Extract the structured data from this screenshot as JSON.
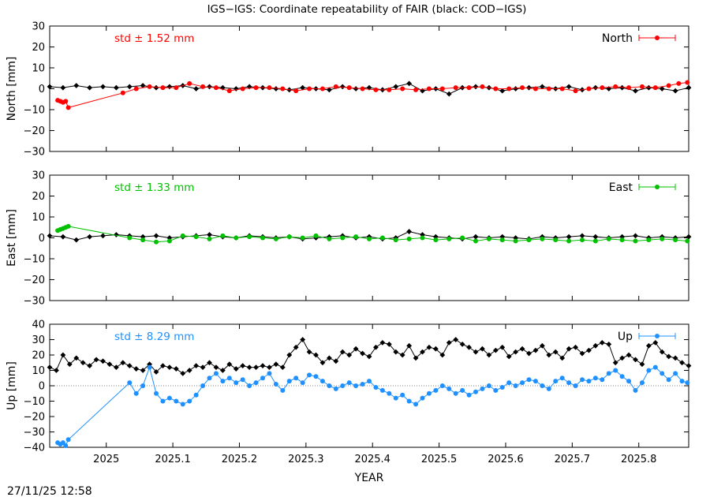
{
  "title": "IGS−IGS: Coordinate repeatability of FAIR (black: COD−IGS)",
  "timestamp": "27/11/25 12:58",
  "chart_data": [
    {
      "type": "scatter",
      "key": "north",
      "ylabel": "North [mm]",
      "ylim": [
        -30,
        30
      ],
      "yticks": [
        -30,
        -20,
        -10,
        0,
        10,
        20,
        30
      ],
      "ytick_labels": [
        "−30",
        "−20",
        "−10",
        "0",
        "10",
        "20",
        "30"
      ],
      "xlim": [
        2024.915,
        2025.875
      ],
      "std_label": "std ± 1.52 mm",
      "legend": "North",
      "color": "#ff0000",
      "zero_line": false,
      "series": [
        {
          "name": "North",
          "color": "#ff0000",
          "x": [
            2024.927,
            2024.931,
            2024.935,
            2024.939,
            2024.943,
            2025.025,
            2025.045,
            2025.065,
            2025.085,
            2025.105,
            2025.125,
            2025.145,
            2025.165,
            2025.185,
            2025.205,
            2025.225,
            2025.245,
            2025.265,
            2025.285,
            2025.305,
            2025.325,
            2025.345,
            2025.365,
            2025.385,
            2025.405,
            2025.425,
            2025.445,
            2025.465,
            2025.485,
            2025.505,
            2025.525,
            2025.545,
            2025.565,
            2025.585,
            2025.605,
            2025.625,
            2025.645,
            2025.665,
            2025.685,
            2025.705,
            2025.725,
            2025.745,
            2025.765,
            2025.785,
            2025.805,
            2025.825,
            2025.845,
            2025.86,
            2025.873
          ],
          "y": [
            -5.5,
            -6.0,
            -6.5,
            -6.0,
            -9.0,
            -2.0,
            0.0,
            1.0,
            0.5,
            0.5,
            2.5,
            1.0,
            0.5,
            -1.0,
            0.0,
            0.5,
            0.5,
            0.0,
            -1.0,
            0.0,
            0.0,
            1.0,
            0.5,
            0.0,
            -0.5,
            -0.5,
            0.0,
            -0.5,
            0.0,
            0.0,
            0.5,
            0.5,
            1.0,
            0.0,
            0.0,
            0.5,
            0.0,
            0.0,
            0.0,
            -1.0,
            0.0,
            0.5,
            1.0,
            0.5,
            1.0,
            0.5,
            1.5,
            2.5,
            3.0
          ]
        },
        {
          "name": "COD−IGS",
          "color": "#000000",
          "x": [
            2024.915,
            2024.935,
            2024.955,
            2024.975,
            2024.995,
            2025.015,
            2025.035,
            2025.055,
            2025.075,
            2025.095,
            2025.115,
            2025.135,
            2025.155,
            2025.175,
            2025.195,
            2025.215,
            2025.235,
            2025.255,
            2025.275,
            2025.295,
            2025.315,
            2025.335,
            2025.355,
            2025.375,
            2025.395,
            2025.415,
            2025.435,
            2025.455,
            2025.475,
            2025.495,
            2025.515,
            2025.535,
            2025.555,
            2025.575,
            2025.595,
            2025.615,
            2025.635,
            2025.655,
            2025.675,
            2025.695,
            2025.715,
            2025.735,
            2025.755,
            2025.775,
            2025.795,
            2025.815,
            2025.835,
            2025.855,
            2025.875
          ],
          "y": [
            1.0,
            0.5,
            1.5,
            0.5,
            1.0,
            0.5,
            1.0,
            1.5,
            0.5,
            1.0,
            1.5,
            0.0,
            1.0,
            0.5,
            0.0,
            1.0,
            0.5,
            0.0,
            -0.5,
            0.5,
            0.0,
            -0.5,
            1.0,
            0.0,
            0.5,
            -0.5,
            1.0,
            2.5,
            -1.0,
            0.0,
            -2.5,
            0.5,
            1.0,
            0.5,
            -1.0,
            0.0,
            0.5,
            1.0,
            0.0,
            1.0,
            -0.5,
            0.5,
            0.0,
            0.5,
            -1.0,
            0.5,
            0.0,
            -1.0,
            0.5
          ]
        }
      ]
    },
    {
      "type": "scatter",
      "key": "east",
      "ylabel": "East [mm]",
      "ylim": [
        -30,
        30
      ],
      "yticks": [
        -30,
        -20,
        -10,
        0,
        10,
        20,
        30
      ],
      "ytick_labels": [
        "−30",
        "−20",
        "−10",
        "0",
        "10",
        "20",
        "30"
      ],
      "xlim": [
        2024.915,
        2025.875
      ],
      "std_label": "std ± 1.33 mm",
      "legend": "East",
      "color": "#00c000",
      "zero_line": false,
      "series": [
        {
          "name": "East",
          "color": "#00c000",
          "x": [
            2024.927,
            2024.931,
            2024.935,
            2024.939,
            2024.943,
            2025.035,
            2025.055,
            2025.075,
            2025.095,
            2025.115,
            2025.135,
            2025.155,
            2025.175,
            2025.195,
            2025.215,
            2025.235,
            2025.255,
            2025.275,
            2025.295,
            2025.315,
            2025.335,
            2025.355,
            2025.375,
            2025.395,
            2025.415,
            2025.435,
            2025.455,
            2025.475,
            2025.495,
            2025.515,
            2025.535,
            2025.555,
            2025.575,
            2025.595,
            2025.615,
            2025.635,
            2025.655,
            2025.675,
            2025.695,
            2025.715,
            2025.735,
            2025.755,
            2025.775,
            2025.795,
            2025.815,
            2025.835,
            2025.855,
            2025.873
          ],
          "y": [
            3.5,
            4.0,
            4.5,
            5.0,
            5.5,
            0.0,
            -1.0,
            -2.0,
            -1.5,
            1.0,
            0.5,
            -0.5,
            1.0,
            0.0,
            0.5,
            0.0,
            -0.5,
            0.5,
            0.0,
            1.0,
            -0.5,
            0.0,
            0.5,
            -0.5,
            0.0,
            -1.0,
            -0.5,
            0.0,
            -1.0,
            -0.5,
            0.0,
            -1.5,
            -0.5,
            -1.0,
            -1.5,
            -1.0,
            -0.5,
            -1.0,
            -1.5,
            -1.0,
            -1.5,
            -0.5,
            -1.0,
            -1.5,
            -1.0,
            -0.5,
            -1.0,
            -1.5
          ]
        },
        {
          "name": "COD−IGS",
          "color": "#000000",
          "x": [
            2024.915,
            2024.935,
            2024.955,
            2024.975,
            2024.995,
            2025.015,
            2025.035,
            2025.055,
            2025.075,
            2025.095,
            2025.115,
            2025.135,
            2025.155,
            2025.175,
            2025.195,
            2025.215,
            2025.235,
            2025.255,
            2025.275,
            2025.295,
            2025.315,
            2025.335,
            2025.355,
            2025.375,
            2025.395,
            2025.415,
            2025.435,
            2025.455,
            2025.475,
            2025.495,
            2025.515,
            2025.535,
            2025.555,
            2025.575,
            2025.595,
            2025.615,
            2025.635,
            2025.655,
            2025.675,
            2025.695,
            2025.715,
            2025.735,
            2025.755,
            2025.775,
            2025.795,
            2025.815,
            2025.835,
            2025.855,
            2025.875
          ],
          "y": [
            1.0,
            0.5,
            -1.0,
            0.5,
            1.0,
            1.5,
            1.0,
            0.5,
            1.0,
            0.0,
            0.5,
            1.0,
            1.5,
            0.5,
            0.0,
            1.0,
            0.5,
            0.0,
            0.5,
            -0.5,
            0.0,
            0.5,
            1.0,
            0.0,
            0.5,
            -0.5,
            0.0,
            3.0,
            1.5,
            0.5,
            0.0,
            -0.5,
            0.5,
            0.0,
            0.5,
            0.0,
            -0.5,
            0.5,
            0.0,
            0.5,
            1.0,
            0.5,
            0.0,
            0.5,
            1.0,
            0.0,
            0.5,
            0.0,
            0.5
          ]
        }
      ]
    },
    {
      "type": "scatter",
      "key": "up",
      "ylabel": "Up [mm]",
      "xlabel": "YEAR",
      "ylim": [
        -40,
        40
      ],
      "yticks": [
        -40,
        -30,
        -20,
        -10,
        0,
        10,
        20,
        30,
        40
      ],
      "ytick_labels": [
        "−40",
        "−30",
        "−20",
        "−10",
        "0",
        "10",
        "20",
        "30",
        "40"
      ],
      "xlim": [
        2024.915,
        2025.875
      ],
      "xticks": [
        2025,
        2025.1,
        2025.2,
        2025.3,
        2025.4,
        2025.5,
        2025.6,
        2025.7,
        2025.8
      ],
      "xtick_labels": [
        "2025",
        "2025.1",
        "2025.2",
        "2025.3",
        "2025.4",
        "2025.5",
        "2025.6",
        "2025.7",
        "2025.8"
      ],
      "std_label": "std ± 8.29 mm",
      "legend": "Up",
      "color": "#1e90ff",
      "zero_line": true,
      "series": [
        {
          "name": "Up",
          "color": "#1e90ff",
          "x": [
            2024.927,
            2024.931,
            2024.935,
            2024.939,
            2024.943,
            2025.035,
            2025.045,
            2025.055,
            2025.065,
            2025.075,
            2025.085,
            2025.095,
            2025.105,
            2025.115,
            2025.125,
            2025.135,
            2025.145,
            2025.155,
            2025.165,
            2025.175,
            2025.185,
            2025.195,
            2025.205,
            2025.215,
            2025.225,
            2025.235,
            2025.245,
            2025.255,
            2025.265,
            2025.275,
            2025.285,
            2025.295,
            2025.305,
            2025.315,
            2025.325,
            2025.335,
            2025.345,
            2025.355,
            2025.365,
            2025.375,
            2025.385,
            2025.395,
            2025.405,
            2025.415,
            2025.425,
            2025.435,
            2025.445,
            2025.455,
            2025.465,
            2025.475,
            2025.485,
            2025.495,
            2025.505,
            2025.515,
            2025.525,
            2025.535,
            2025.545,
            2025.555,
            2025.565,
            2025.575,
            2025.585,
            2025.595,
            2025.605,
            2025.615,
            2025.625,
            2025.635,
            2025.645,
            2025.655,
            2025.665,
            2025.675,
            2025.685,
            2025.695,
            2025.705,
            2025.715,
            2025.725,
            2025.735,
            2025.745,
            2025.755,
            2025.765,
            2025.775,
            2025.785,
            2025.795,
            2025.805,
            2025.815,
            2025.825,
            2025.835,
            2025.845,
            2025.855,
            2025.865,
            2025.873
          ],
          "y": [
            -37,
            -38,
            -37,
            -39,
            -35,
            2,
            -5,
            0,
            12,
            -5,
            -10,
            -8,
            -10,
            -12,
            -10,
            -6,
            0,
            5,
            8,
            3,
            5,
            2,
            4,
            0,
            2,
            5,
            8,
            1,
            -3,
            3,
            5,
            2,
            7,
            6,
            3,
            0,
            -2,
            0,
            2,
            0,
            1,
            3,
            -1,
            -3,
            -5,
            -8,
            -6,
            -10,
            -12,
            -8,
            -5,
            -3,
            0,
            -2,
            -5,
            -3,
            -6,
            -4,
            -2,
            0,
            -3,
            -1,
            2,
            0,
            2,
            4,
            3,
            0,
            -2,
            3,
            5,
            2,
            0,
            4,
            3,
            5,
            4,
            8,
            10,
            6,
            3,
            -3,
            2,
            10,
            12,
            8,
            4,
            8,
            3,
            2
          ]
        },
        {
          "name": "COD−IGS",
          "color": "#000000",
          "x": [
            2024.915,
            2024.925,
            2024.935,
            2024.945,
            2024.955,
            2024.965,
            2024.975,
            2024.985,
            2024.995,
            2025.005,
            2025.015,
            2025.025,
            2025.035,
            2025.045,
            2025.055,
            2025.065,
            2025.075,
            2025.085,
            2025.095,
            2025.105,
            2025.115,
            2025.125,
            2025.135,
            2025.145,
            2025.155,
            2025.165,
            2025.175,
            2025.185,
            2025.195,
            2025.205,
            2025.215,
            2025.225,
            2025.235,
            2025.245,
            2025.255,
            2025.265,
            2025.275,
            2025.285,
            2025.295,
            2025.305,
            2025.315,
            2025.325,
            2025.335,
            2025.345,
            2025.355,
            2025.365,
            2025.375,
            2025.385,
            2025.395,
            2025.405,
            2025.415,
            2025.425,
            2025.435,
            2025.445,
            2025.455,
            2025.465,
            2025.475,
            2025.485,
            2025.495,
            2025.505,
            2025.515,
            2025.525,
            2025.535,
            2025.545,
            2025.555,
            2025.565,
            2025.575,
            2025.585,
            2025.595,
            2025.605,
            2025.615,
            2025.625,
            2025.635,
            2025.645,
            2025.655,
            2025.665,
            2025.675,
            2025.685,
            2025.695,
            2025.705,
            2025.715,
            2025.725,
            2025.735,
            2025.745,
            2025.755,
            2025.765,
            2025.775,
            2025.785,
            2025.795,
            2025.805,
            2025.815,
            2025.825,
            2025.835,
            2025.845,
            2025.855,
            2025.865,
            2025.875
          ],
          "y": [
            12,
            10,
            20,
            14,
            18,
            15,
            13,
            17,
            16,
            14,
            12,
            15,
            13,
            11,
            10,
            14,
            9,
            13,
            12,
            11,
            8,
            10,
            13,
            12,
            15,
            12,
            10,
            14,
            11,
            13,
            12,
            12,
            13,
            12,
            14,
            12,
            20,
            25,
            30,
            22,
            20,
            15,
            18,
            16,
            22,
            20,
            24,
            21,
            19,
            25,
            28,
            27,
            22,
            20,
            26,
            18,
            22,
            25,
            24,
            20,
            28,
            30,
            27,
            25,
            22,
            24,
            20,
            23,
            25,
            19,
            22,
            24,
            21,
            23,
            26,
            20,
            22,
            18,
            24,
            25,
            21,
            23,
            26,
            28,
            27,
            15,
            18,
            20,
            17,
            14,
            26,
            28,
            22,
            19,
            18,
            15,
            13
          ]
        }
      ]
    }
  ]
}
